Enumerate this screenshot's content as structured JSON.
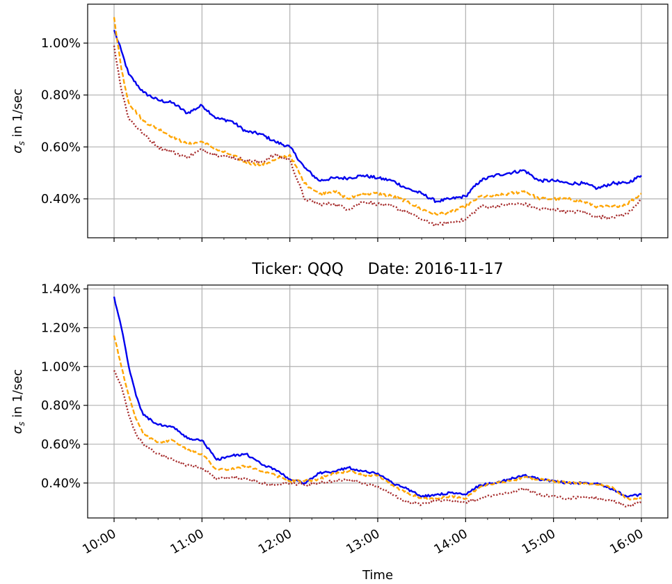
{
  "chart_data": [
    {
      "type": "line",
      "title": "",
      "xlabel": "",
      "ylabel": "σ_s in 1/sec",
      "ylabel_main": "σ",
      "ylabel_sub": "s",
      "ylabel_rest": " in 1/sec",
      "x_ticks": [
        "10:00",
        "11:00",
        "12:00",
        "13:00",
        "14:00",
        "15:00",
        "16:00"
      ],
      "xlim": [
        "10:00",
        "16:00"
      ],
      "ylim": [
        0.25,
        1.15
      ],
      "y_ticks": [
        0.4,
        0.6,
        0.8,
        1.0
      ],
      "y_tick_labels": [
        "0.40%",
        "0.60%",
        "0.80%",
        "1.00%"
      ],
      "grid": true,
      "x": [
        "10:00",
        "10:05",
        "10:10",
        "10:20",
        "10:30",
        "10:40",
        "10:50",
        "11:00",
        "11:10",
        "11:20",
        "11:30",
        "11:40",
        "11:50",
        "12:00",
        "12:10",
        "12:20",
        "12:30",
        "12:40",
        "12:50",
        "13:00",
        "13:10",
        "13:20",
        "13:30",
        "13:40",
        "13:50",
        "14:00",
        "14:10",
        "14:20",
        "14:30",
        "14:40",
        "14:50",
        "15:00",
        "15:10",
        "15:20",
        "15:30",
        "15:40",
        "15:50",
        "16:00"
      ],
      "series": [
        {
          "color": "#0000ee",
          "style": "solid",
          "values": [
            1.05,
            0.97,
            0.88,
            0.81,
            0.78,
            0.77,
            0.73,
            0.76,
            0.71,
            0.7,
            0.66,
            0.65,
            0.62,
            0.6,
            0.52,
            0.47,
            0.48,
            0.48,
            0.49,
            0.48,
            0.47,
            0.44,
            0.42,
            0.39,
            0.4,
            0.41,
            0.47,
            0.49,
            0.5,
            0.51,
            0.47,
            0.47,
            0.46,
            0.46,
            0.44,
            0.46,
            0.46,
            0.49
          ]
        },
        {
          "color": "#ffa500",
          "style": "dashed",
          "values": [
            1.1,
            0.9,
            0.77,
            0.7,
            0.67,
            0.64,
            0.61,
            0.62,
            0.59,
            0.57,
            0.54,
            0.53,
            0.55,
            0.57,
            0.46,
            0.42,
            0.43,
            0.4,
            0.42,
            0.42,
            0.41,
            0.39,
            0.36,
            0.34,
            0.35,
            0.37,
            0.41,
            0.41,
            0.42,
            0.43,
            0.4,
            0.4,
            0.4,
            0.39,
            0.37,
            0.37,
            0.38,
            0.42
          ]
        },
        {
          "color": "#a52a2a",
          "style": "dotted",
          "values": [
            0.99,
            0.82,
            0.71,
            0.65,
            0.6,
            0.58,
            0.56,
            0.59,
            0.57,
            0.56,
            0.55,
            0.54,
            0.57,
            0.55,
            0.4,
            0.38,
            0.38,
            0.36,
            0.39,
            0.38,
            0.37,
            0.35,
            0.32,
            0.3,
            0.31,
            0.32,
            0.37,
            0.37,
            0.38,
            0.38,
            0.36,
            0.36,
            0.35,
            0.35,
            0.33,
            0.33,
            0.34,
            0.4
          ]
        }
      ]
    },
    {
      "type": "line",
      "title": "Ticker: QQQ     Date: 2016-11-17",
      "xlabel": "Time",
      "ylabel": "σ_s in 1/sec",
      "ylabel_main": "σ",
      "ylabel_sub": "s",
      "ylabel_rest": " in 1/sec",
      "x_ticks": [
        "10:00",
        "11:00",
        "12:00",
        "13:00",
        "14:00",
        "15:00",
        "16:00"
      ],
      "xlim": [
        "10:00",
        "16:00"
      ],
      "ylim": [
        0.22,
        1.42
      ],
      "y_ticks": [
        0.4,
        0.6,
        0.8,
        1.0,
        1.2,
        1.4
      ],
      "y_tick_labels": [
        "0.40%",
        "0.60%",
        "0.80%",
        "1.00%",
        "1.20%",
        "1.40%"
      ],
      "grid": true,
      "x": [
        "10:00",
        "10:05",
        "10:10",
        "10:15",
        "10:20",
        "10:30",
        "10:40",
        "10:50",
        "11:00",
        "11:10",
        "11:20",
        "11:30",
        "11:40",
        "11:50",
        "12:00",
        "12:10",
        "12:20",
        "12:30",
        "12:40",
        "12:50",
        "13:00",
        "13:10",
        "13:20",
        "13:30",
        "13:40",
        "13:50",
        "14:00",
        "14:10",
        "14:20",
        "14:30",
        "14:40",
        "14:50",
        "15:00",
        "15:10",
        "15:20",
        "15:30",
        "15:40",
        "15:50",
        "16:00"
      ],
      "series": [
        {
          "color": "#0000ee",
          "style": "solid",
          "values": [
            1.36,
            1.2,
            1.0,
            0.85,
            0.75,
            0.7,
            0.69,
            0.63,
            0.62,
            0.52,
            0.54,
            0.55,
            0.5,
            0.47,
            0.42,
            0.4,
            0.45,
            0.46,
            0.48,
            0.46,
            0.45,
            0.4,
            0.37,
            0.33,
            0.34,
            0.35,
            0.34,
            0.39,
            0.4,
            0.42,
            0.44,
            0.42,
            0.41,
            0.4,
            0.4,
            0.4,
            0.37,
            0.33,
            0.34
          ]
        },
        {
          "color": "#ffa500",
          "style": "dashed",
          "values": [
            1.16,
            1.0,
            0.85,
            0.73,
            0.65,
            0.61,
            0.62,
            0.57,
            0.55,
            0.47,
            0.47,
            0.49,
            0.46,
            0.44,
            0.41,
            0.41,
            0.42,
            0.45,
            0.46,
            0.44,
            0.44,
            0.39,
            0.35,
            0.32,
            0.32,
            0.33,
            0.32,
            0.38,
            0.4,
            0.41,
            0.43,
            0.42,
            0.41,
            0.4,
            0.4,
            0.39,
            0.38,
            0.32,
            0.32
          ]
        },
        {
          "color": "#a52a2a",
          "style": "dotted",
          "values": [
            0.98,
            0.9,
            0.75,
            0.65,
            0.6,
            0.55,
            0.52,
            0.49,
            0.48,
            0.42,
            0.43,
            0.42,
            0.4,
            0.39,
            0.4,
            0.39,
            0.4,
            0.41,
            0.42,
            0.4,
            0.38,
            0.34,
            0.3,
            0.29,
            0.31,
            0.31,
            0.3,
            0.32,
            0.34,
            0.35,
            0.37,
            0.34,
            0.33,
            0.32,
            0.33,
            0.32,
            0.31,
            0.28,
            0.3
          ]
        }
      ]
    }
  ]
}
